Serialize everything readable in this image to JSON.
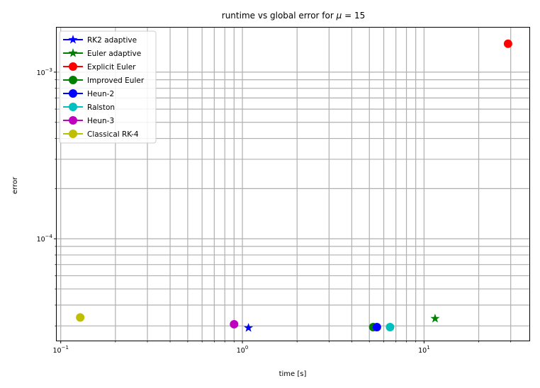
{
  "chart_data": {
    "type": "scatter",
    "title_prefix": "runtime vs global error for",
    "title_symbol": "μ",
    "title_suffix": "= 15",
    "xlabel": "time [s]",
    "ylabel": "error",
    "xscale": "log",
    "yscale": "log",
    "xlim": [
      0.095,
      38
    ],
    "ylim": [
      2.45e-05,
      0.00185
    ],
    "grid": true,
    "legend_position": "upper-left",
    "x_ticks": [
      {
        "value": 0.1,
        "mant": "10",
        "exp": "−1"
      },
      {
        "value": 1,
        "mant": "10",
        "exp": "0"
      },
      {
        "value": 10,
        "mant": "10",
        "exp": "1"
      }
    ],
    "y_ticks": [
      {
        "value": 0.0001,
        "mant": "10",
        "exp": "−4"
      },
      {
        "value": 0.001,
        "mant": "10",
        "exp": "−3"
      }
    ],
    "series": [
      {
        "name": "RK2 adaptive",
        "color": "#0000ff",
        "marker": "star",
        "x": [
          1.08
        ],
        "y": [
          2.92e-05
        ]
      },
      {
        "name": "Euler adaptive",
        "color": "#008000",
        "marker": "star",
        "x": [
          11.5
        ],
        "y": [
          3.32e-05
        ]
      },
      {
        "name": "Explicit Euler",
        "color": "#ff0000",
        "marker": "circle",
        "x": [
          29.0
        ],
        "y": [
          0.00148
        ]
      },
      {
        "name": "Improved Euler",
        "color": "#008000",
        "marker": "circle",
        "x": [
          5.25
        ],
        "y": [
          2.95e-05
        ]
      },
      {
        "name": "Heun-2",
        "color": "#0000ff",
        "marker": "circle",
        "x": [
          5.5
        ],
        "y": [
          2.95e-05
        ]
      },
      {
        "name": "Ralston",
        "color": "#00bfbf",
        "marker": "circle",
        "x": [
          6.5
        ],
        "y": [
          2.95e-05
        ]
      },
      {
        "name": "Heun-3",
        "color": "#bf00bf",
        "marker": "circle",
        "x": [
          0.9
        ],
        "y": [
          3.07e-05
        ]
      },
      {
        "name": "Classical RK-4",
        "color": "#bfbf00",
        "marker": "circle",
        "x": [
          0.128
        ],
        "y": [
          3.37e-05
        ]
      }
    ]
  }
}
